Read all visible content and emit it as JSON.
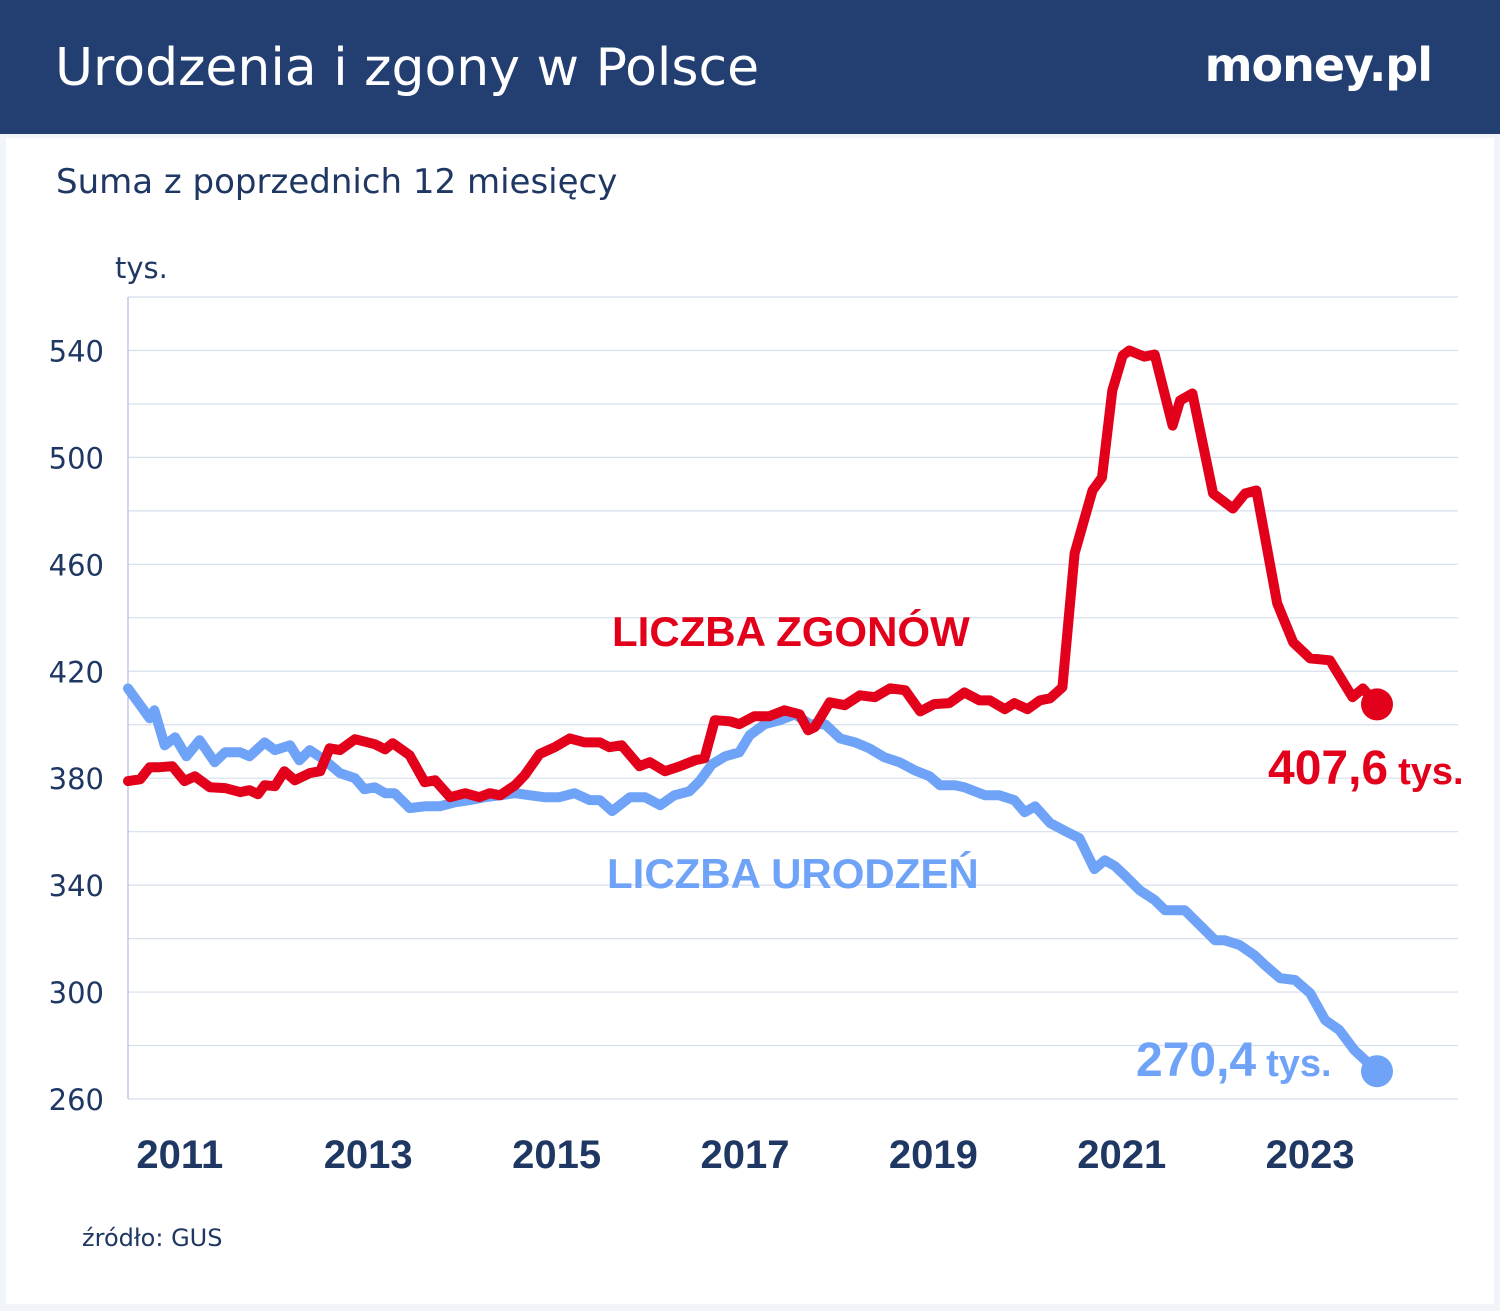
{
  "header": {
    "title": "Urodzenia i zgony w Polsce",
    "logo": "money.pl"
  },
  "subtitle": "Suma z poprzednich 12 miesięcy",
  "source": "źródło: GUS",
  "colors": {
    "header": "#233f72",
    "deaths": "#e2001a",
    "births": "#6fa3f7",
    "text": "#1f3763",
    "grid": "#d6dfec"
  },
  "chart_data": {
    "type": "line",
    "ylabel": "tys.",
    "ylim": [
      260,
      560
    ],
    "xlim": [
      2010.45,
      2024.57
    ],
    "yticks": [
      260,
      300,
      340,
      380,
      420,
      460,
      500,
      540
    ],
    "xticks": [
      2011,
      2013,
      2015,
      2017,
      2019,
      2021,
      2023
    ],
    "grid": {
      "horizontal": true,
      "step": 20
    },
    "annotations": {
      "deaths_label": "LICZBA ZGONÓW",
      "births_label": "LICZBA URODZEŃ",
      "deaths_end_value": "407,6",
      "births_end_value": "270,4",
      "unit": "tys."
    },
    "series": [
      {
        "name": "LICZBA ZGONÓW",
        "color": "#e2001a",
        "points": [
          [
            2010.45,
            378.9
          ],
          [
            2010.58,
            379.6
          ],
          [
            2010.68,
            384.1
          ],
          [
            2010.79,
            384.1
          ],
          [
            2010.92,
            384.5
          ],
          [
            2011.05,
            378.9
          ],
          [
            2011.16,
            380.7
          ],
          [
            2011.32,
            376.6
          ],
          [
            2011.48,
            376.3
          ],
          [
            2011.64,
            374.8
          ],
          [
            2011.74,
            375.5
          ],
          [
            2011.83,
            374.0
          ],
          [
            2011.9,
            377.4
          ],
          [
            2012.01,
            377.0
          ],
          [
            2012.11,
            382.6
          ],
          [
            2012.22,
            379.2
          ],
          [
            2012.38,
            381.9
          ],
          [
            2012.49,
            382.6
          ],
          [
            2012.59,
            391.2
          ],
          [
            2012.7,
            390.5
          ],
          [
            2012.86,
            394.6
          ],
          [
            2013.07,
            392.7
          ],
          [
            2013.18,
            390.8
          ],
          [
            2013.26,
            393.1
          ],
          [
            2013.44,
            388.6
          ],
          [
            2013.6,
            378.5
          ],
          [
            2013.71,
            379.2
          ],
          [
            2013.87,
            372.9
          ],
          [
            2014.03,
            374.4
          ],
          [
            2014.18,
            372.9
          ],
          [
            2014.29,
            374.4
          ],
          [
            2014.4,
            373.6
          ],
          [
            2014.56,
            377.4
          ],
          [
            2014.66,
            381.1
          ],
          [
            2014.82,
            389.0
          ],
          [
            2014.98,
            391.6
          ],
          [
            2015.14,
            394.9
          ],
          [
            2015.3,
            393.4
          ],
          [
            2015.46,
            393.4
          ],
          [
            2015.56,
            391.6
          ],
          [
            2015.69,
            392.3
          ],
          [
            2015.88,
            384.5
          ],
          [
            2015.99,
            386.0
          ],
          [
            2016.15,
            382.6
          ],
          [
            2016.31,
            384.5
          ],
          [
            2016.47,
            386.7
          ],
          [
            2016.57,
            387.5
          ],
          [
            2016.68,
            401.7
          ],
          [
            2016.84,
            401.3
          ],
          [
            2016.94,
            400.2
          ],
          [
            2017.1,
            403.2
          ],
          [
            2017.26,
            403.2
          ],
          [
            2017.42,
            405.4
          ],
          [
            2017.58,
            403.9
          ],
          [
            2017.67,
            397.9
          ],
          [
            2017.74,
            399.1
          ],
          [
            2017.9,
            408.4
          ],
          [
            2018.06,
            407.3
          ],
          [
            2018.22,
            411.0
          ],
          [
            2018.38,
            410.3
          ],
          [
            2018.54,
            413.6
          ],
          [
            2018.7,
            412.9
          ],
          [
            2018.86,
            405.0
          ],
          [
            2019.01,
            407.7
          ],
          [
            2019.17,
            408.1
          ],
          [
            2019.33,
            412.1
          ],
          [
            2019.49,
            409.1
          ],
          [
            2019.6,
            409.1
          ],
          [
            2019.76,
            405.8
          ],
          [
            2019.86,
            408.1
          ],
          [
            2020.0,
            405.8
          ],
          [
            2020.13,
            409.1
          ],
          [
            2020.24,
            409.9
          ],
          [
            2020.37,
            414.0
          ],
          [
            2020.5,
            464.1
          ],
          [
            2020.69,
            487.6
          ],
          [
            2020.79,
            492.5
          ],
          [
            2020.9,
            525.0
          ],
          [
            2021.01,
            538.1
          ],
          [
            2021.08,
            540.0
          ],
          [
            2021.24,
            537.7
          ],
          [
            2021.35,
            538.5
          ],
          [
            2021.54,
            511.9
          ],
          [
            2021.62,
            521.3
          ],
          [
            2021.75,
            523.9
          ],
          [
            2021.97,
            486.5
          ],
          [
            2022.18,
            480.9
          ],
          [
            2022.31,
            486.5
          ],
          [
            2022.43,
            487.6
          ],
          [
            2022.65,
            445.4
          ],
          [
            2022.82,
            430.8
          ],
          [
            2023.0,
            424.8
          ],
          [
            2023.21,
            424.1
          ],
          [
            2023.45,
            410.3
          ],
          [
            2023.56,
            413.6
          ],
          [
            2023.71,
            407.6
          ]
        ]
      },
      {
        "name": "LICZBA URODZEŃ",
        "color": "#6fa3f7",
        "points": [
          [
            2010.45,
            413.6
          ],
          [
            2010.58,
            407.3
          ],
          [
            2010.68,
            402.4
          ],
          [
            2010.73,
            405.4
          ],
          [
            2010.84,
            392.3
          ],
          [
            2010.95,
            395.3
          ],
          [
            2011.07,
            388.2
          ],
          [
            2011.21,
            394.2
          ],
          [
            2011.37,
            386.0
          ],
          [
            2011.48,
            389.7
          ],
          [
            2011.64,
            389.7
          ],
          [
            2011.74,
            388.2
          ],
          [
            2011.9,
            393.4
          ],
          [
            2012.01,
            390.5
          ],
          [
            2012.17,
            392.3
          ],
          [
            2012.27,
            386.7
          ],
          [
            2012.38,
            390.5
          ],
          [
            2012.54,
            386.7
          ],
          [
            2012.7,
            381.9
          ],
          [
            2012.86,
            380.0
          ],
          [
            2012.96,
            375.9
          ],
          [
            2013.07,
            376.6
          ],
          [
            2013.18,
            374.4
          ],
          [
            2013.28,
            374.4
          ],
          [
            2013.44,
            368.8
          ],
          [
            2013.6,
            369.5
          ],
          [
            2013.76,
            369.5
          ],
          [
            2013.92,
            371.0
          ],
          [
            2014.08,
            371.8
          ],
          [
            2014.24,
            372.9
          ],
          [
            2014.4,
            373.6
          ],
          [
            2014.56,
            374.4
          ],
          [
            2014.72,
            373.6
          ],
          [
            2014.87,
            372.9
          ],
          [
            2015.03,
            372.9
          ],
          [
            2015.19,
            374.4
          ],
          [
            2015.35,
            371.8
          ],
          [
            2015.46,
            371.8
          ],
          [
            2015.59,
            367.7
          ],
          [
            2015.78,
            372.9
          ],
          [
            2015.94,
            372.9
          ],
          [
            2016.1,
            369.9
          ],
          [
            2016.25,
            373.6
          ],
          [
            2016.41,
            375.1
          ],
          [
            2016.52,
            378.9
          ],
          [
            2016.65,
            385.2
          ],
          [
            2016.79,
            388.2
          ],
          [
            2016.94,
            389.7
          ],
          [
            2017.05,
            396.1
          ],
          [
            2017.21,
            400.2
          ],
          [
            2017.37,
            401.7
          ],
          [
            2017.53,
            403.9
          ],
          [
            2017.69,
            400.2
          ],
          [
            2017.85,
            400.2
          ],
          [
            2018.01,
            394.9
          ],
          [
            2018.17,
            393.4
          ],
          [
            2018.32,
            391.2
          ],
          [
            2018.48,
            387.8
          ],
          [
            2018.64,
            386.0
          ],
          [
            2018.8,
            383.0
          ],
          [
            2018.96,
            380.7
          ],
          [
            2019.07,
            377.4
          ],
          [
            2019.23,
            377.4
          ],
          [
            2019.33,
            376.6
          ],
          [
            2019.55,
            373.6
          ],
          [
            2019.7,
            373.6
          ],
          [
            2019.86,
            371.8
          ],
          [
            2019.97,
            367.3
          ],
          [
            2020.08,
            369.5
          ],
          [
            2020.24,
            363.2
          ],
          [
            2020.4,
            360.2
          ],
          [
            2020.55,
            357.6
          ],
          [
            2020.71,
            346.0
          ],
          [
            2020.82,
            349.3
          ],
          [
            2020.93,
            347.1
          ],
          [
            2021.03,
            343.7
          ],
          [
            2021.19,
            338.1
          ],
          [
            2021.35,
            334.4
          ],
          [
            2021.46,
            330.6
          ],
          [
            2021.67,
            330.6
          ],
          [
            2021.83,
            325.0
          ],
          [
            2021.99,
            319.4
          ],
          [
            2022.09,
            319.4
          ],
          [
            2022.25,
            317.6
          ],
          [
            2022.41,
            313.8
          ],
          [
            2022.52,
            310.1
          ],
          [
            2022.68,
            305.2
          ],
          [
            2022.84,
            304.5
          ],
          [
            2023.0,
            299.6
          ],
          [
            2023.16,
            289.5
          ],
          [
            2023.31,
            285.8
          ],
          [
            2023.47,
            278.3
          ],
          [
            2023.71,
            270.4
          ]
        ]
      }
    ]
  }
}
